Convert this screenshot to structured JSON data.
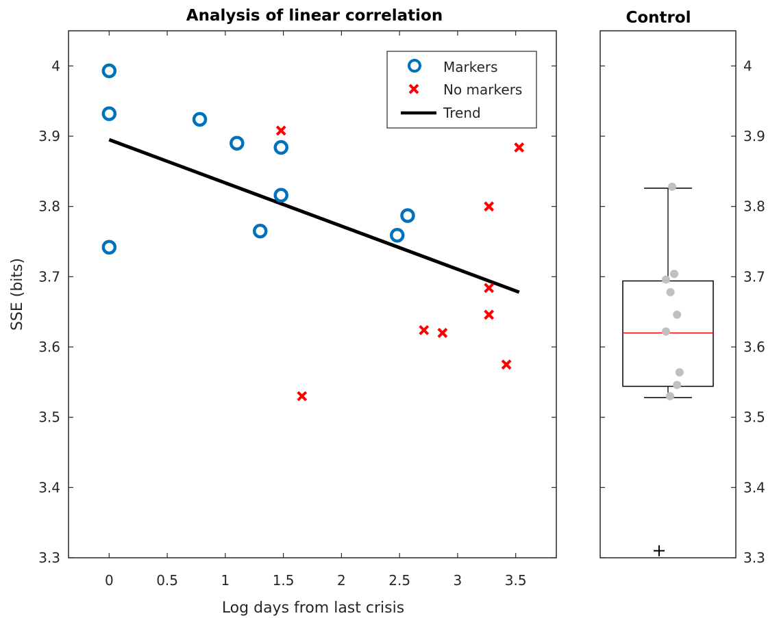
{
  "chart_data": [
    {
      "type": "scatter",
      "title": "Analysis of linear correlation",
      "xlabel": "Log days from last crisis",
      "ylabel": "SSE (bits)",
      "xlim": [
        -0.35,
        3.85
      ],
      "ylim": [
        3.3,
        4.05
      ],
      "xticks": [
        0,
        0.5,
        1,
        1.5,
        2,
        2.5,
        3,
        3.5
      ],
      "xtick_labels": [
        "0",
        "0.5",
        "1",
        "1.5",
        "2",
        "2.5",
        "3",
        "3.5"
      ],
      "yticks": [
        3.3,
        3.4,
        3.5,
        3.6,
        3.7,
        3.8,
        3.9,
        4.0
      ],
      "ytick_labels": [
        "3.3",
        "3.4",
        "3.5",
        "3.6",
        "3.7",
        "3.8",
        "3.9",
        "4"
      ],
      "grid": false,
      "legend_position": "top-right",
      "series": [
        {
          "name": "Markers",
          "marker": "circle",
          "color": "#0072BD",
          "points": [
            {
              "x": 0,
              "y": 3.993
            },
            {
              "x": 0,
              "y": 3.932
            },
            {
              "x": 0,
              "y": 3.742
            },
            {
              "x": 0.78,
              "y": 3.924
            },
            {
              "x": 1.1,
              "y": 3.89
            },
            {
              "x": 1.3,
              "y": 3.765
            },
            {
              "x": 1.48,
              "y": 3.884
            },
            {
              "x": 1.48,
              "y": 3.816
            },
            {
              "x": 2.48,
              "y": 3.759
            },
            {
              "x": 2.57,
              "y": 3.787
            }
          ]
        },
        {
          "name": "No markers",
          "marker": "x",
          "color": "#FF0000",
          "points": [
            {
              "x": 1.48,
              "y": 3.908
            },
            {
              "x": 1.66,
              "y": 3.53
            },
            {
              "x": 2.71,
              "y": 3.624
            },
            {
              "x": 2.87,
              "y": 3.62
            },
            {
              "x": 3.27,
              "y": 3.8
            },
            {
              "x": 3.27,
              "y": 3.684
            },
            {
              "x": 3.27,
              "y": 3.646
            },
            {
              "x": 3.42,
              "y": 3.575
            },
            {
              "x": 3.53,
              "y": 3.884
            }
          ]
        },
        {
          "name": "Trend",
          "marker": "line",
          "color": "#000000",
          "points": [
            {
              "x": 0,
              "y": 3.895
            },
            {
              "x": 3.53,
              "y": 3.678
            }
          ]
        }
      ]
    },
    {
      "type": "boxplot",
      "title": "Control",
      "ylim": [
        3.3,
        4.05
      ],
      "yticks": [
        3.3,
        3.4,
        3.5,
        3.6,
        3.7,
        3.8,
        3.9,
        4.0
      ],
      "ytick_labels": [
        "3.3",
        "3.4",
        "3.5",
        "3.6",
        "3.7",
        "3.8",
        "3.9",
        "4"
      ],
      "y_axis_side": "right",
      "box": {
        "q1": 3.544,
        "median": 3.62,
        "q3": 3.694,
        "whisker_low": 3.528,
        "whisker_high": 3.826,
        "outliers": [
          3.31
        ],
        "median_color": "#FF0000",
        "box_color": "#000000"
      },
      "points_color": "#C0C0C0",
      "points": [
        {
          "jitter": 0.1,
          "y": 3.828
        },
        {
          "jitter": 0.15,
          "y": 3.704
        },
        {
          "jitter": -0.05,
          "y": 3.696
        },
        {
          "jitter": 0.06,
          "y": 3.678
        },
        {
          "jitter": 0.22,
          "y": 3.646
        },
        {
          "jitter": -0.05,
          "y": 3.622
        },
        {
          "jitter": 0.28,
          "y": 3.564
        },
        {
          "jitter": 0.22,
          "y": 3.546
        },
        {
          "jitter": 0.05,
          "y": 3.53
        }
      ]
    }
  ]
}
